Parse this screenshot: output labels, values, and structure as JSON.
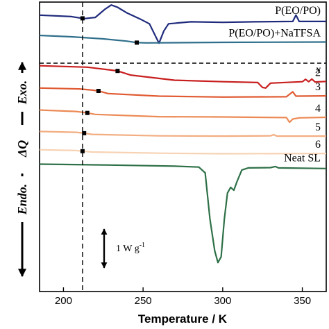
{
  "chart_data": {
    "type": "line",
    "title": "",
    "xlabel": "Temperature / K",
    "ylabel": "ΔQ",
    "ylabel_top": "Exo.",
    "ylabel_bottom": "Endo.",
    "xlim": [
      185,
      365
    ],
    "xticks": [
      200,
      250,
      300,
      350
    ],
    "scale_bar_label": "1 W g",
    "scale_bar_exp": "-1",
    "x_header": "x",
    "vertical_ref_line_x": 212,
    "separator": "dashed line between the polymer curves and the x-series",
    "series": [
      {
        "name": "P(EO/PO)",
        "color": "#1f2a7c",
        "baseline": 0.94,
        "tg": 212,
        "points": [
          [
            185,
            0.955
          ],
          [
            205,
            0.95
          ],
          [
            213,
            0.943
          ],
          [
            220,
            0.947
          ],
          [
            226,
            0.975
          ],
          [
            230,
            0.99
          ],
          [
            234,
            0.982
          ],
          [
            240,
            0.962
          ],
          [
            248,
            0.942
          ],
          [
            254,
            0.925
          ],
          [
            258,
            0.88
          ],
          [
            260,
            0.858
          ],
          [
            263,
            0.9
          ],
          [
            266,
            0.925
          ],
          [
            280,
            0.932
          ],
          [
            300,
            0.93
          ],
          [
            320,
            0.932
          ],
          [
            344,
            0.933
          ],
          [
            346,
            0.955
          ],
          [
            348,
            0.933
          ],
          [
            365,
            0.933
          ]
        ]
      },
      {
        "name": "P(EO/PO)+NaTFSA",
        "color": "#2f6f8c",
        "tg": 246,
        "points": [
          [
            185,
            0.885
          ],
          [
            205,
            0.88
          ],
          [
            225,
            0.873
          ],
          [
            240,
            0.865
          ],
          [
            246,
            0.86
          ],
          [
            252,
            0.859
          ],
          [
            300,
            0.861
          ],
          [
            365,
            0.862
          ]
        ]
      },
      {
        "name": "2",
        "color": "#c81e1e",
        "tg": 234,
        "points": [
          [
            185,
            0.78
          ],
          [
            215,
            0.775
          ],
          [
            230,
            0.765
          ],
          [
            234,
            0.762
          ],
          [
            242,
            0.748
          ],
          [
            270,
            0.73
          ],
          [
            300,
            0.725
          ],
          [
            322,
            0.722
          ],
          [
            325,
            0.705
          ],
          [
            327,
            0.703
          ],
          [
            330,
            0.72
          ],
          [
            350,
            0.725
          ],
          [
            352,
            0.733
          ],
          [
            354,
            0.725
          ],
          [
            356,
            0.734
          ],
          [
            358,
            0.724
          ],
          [
            365,
            0.726
          ]
        ]
      },
      {
        "name": "3",
        "color": "#e05a32",
        "tg": 222,
        "points": [
          [
            185,
            0.703
          ],
          [
            210,
            0.7
          ],
          [
            218,
            0.696
          ],
          [
            222,
            0.693
          ],
          [
            228,
            0.684
          ],
          [
            260,
            0.675
          ],
          [
            300,
            0.672
          ],
          [
            340,
            0.673
          ],
          [
            344,
            0.69
          ],
          [
            346,
            0.675
          ],
          [
            365,
            0.676
          ]
        ]
      },
      {
        "name": "4",
        "color": "#ec8a55",
        "tg": 215,
        "points": [
          [
            185,
            0.627
          ],
          [
            208,
            0.622
          ],
          [
            214,
            0.618
          ],
          [
            220,
            0.612
          ],
          [
            260,
            0.604
          ],
          [
            300,
            0.603
          ],
          [
            340,
            0.601
          ],
          [
            342,
            0.585
          ],
          [
            344,
            0.596
          ],
          [
            348,
            0.6
          ],
          [
            365,
            0.602
          ]
        ]
      },
      {
        "name": "5",
        "color": "#f2ad80",
        "tg": 213,
        "points": [
          [
            185,
            0.553
          ],
          [
            208,
            0.55
          ],
          [
            213,
            0.547
          ],
          [
            218,
            0.543
          ],
          [
            260,
            0.538
          ],
          [
            300,
            0.537
          ],
          [
            330,
            0.538
          ],
          [
            332,
            0.542
          ],
          [
            334,
            0.537
          ],
          [
            365,
            0.537
          ]
        ]
      },
      {
        "name": "6",
        "color": "#f7d2b3",
        "tg": 212,
        "points": [
          [
            185,
            0.49
          ],
          [
            208,
            0.487
          ],
          [
            212,
            0.485
          ],
          [
            218,
            0.482
          ],
          [
            260,
            0.478
          ],
          [
            300,
            0.476
          ],
          [
            365,
            0.477
          ]
        ]
      },
      {
        "name": "Neat SL",
        "color": "#2e7047",
        "baseline": 0.43,
        "points": [
          [
            185,
            0.44
          ],
          [
            230,
            0.437
          ],
          [
            270,
            0.433
          ],
          [
            285,
            0.43
          ],
          [
            289,
            0.41
          ],
          [
            292,
            0.25
          ],
          [
            295,
            0.14
          ],
          [
            297,
            0.1
          ],
          [
            299,
            0.12
          ],
          [
            301,
            0.25
          ],
          [
            303,
            0.34
          ],
          [
            305,
            0.36
          ],
          [
            307,
            0.35
          ],
          [
            309,
            0.38
          ],
          [
            312,
            0.42
          ],
          [
            316,
            0.427
          ],
          [
            330,
            0.428
          ],
          [
            333,
            0.432
          ],
          [
            335,
            0.427
          ],
          [
            365,
            0.425
          ]
        ]
      }
    ]
  }
}
